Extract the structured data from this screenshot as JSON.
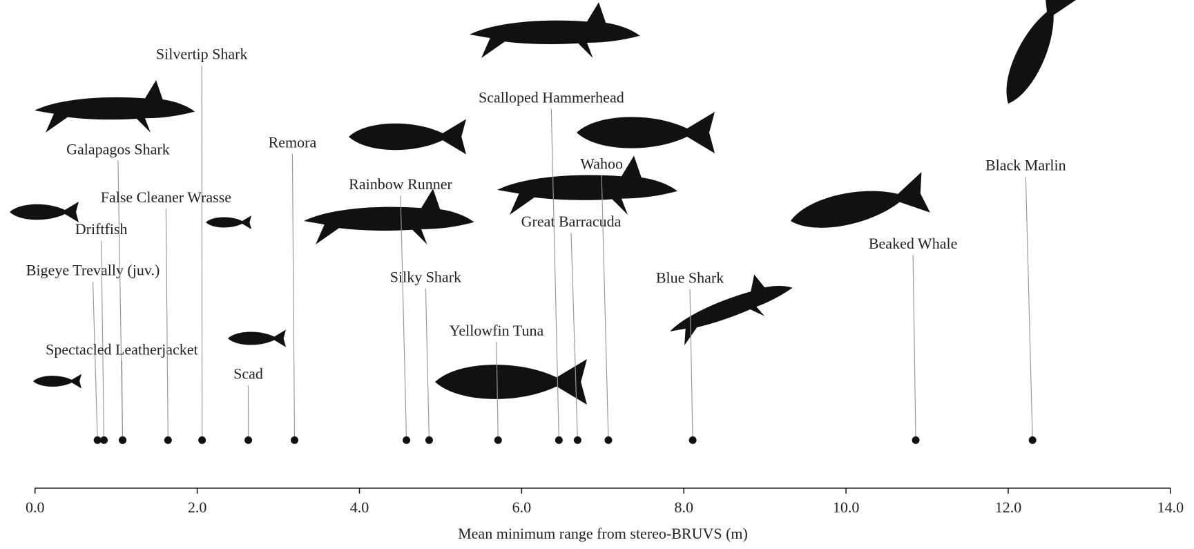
{
  "chart_data": {
    "type": "dot-strip",
    "x_label": "Mean minimum  range  from  stereo-BRUVS  (m)",
    "xlim": [
      0,
      14
    ],
    "xticks": [
      {
        "value": 0,
        "label": "0.0"
      },
      {
        "value": 2,
        "label": "2.0"
      },
      {
        "value": 4,
        "label": "4.0"
      },
      {
        "value": 6,
        "label": "6.0"
      },
      {
        "value": 8,
        "label": "8.0"
      },
      {
        "value": 10,
        "label": "10.0"
      },
      {
        "value": 12,
        "label": "12.0"
      },
      {
        "value": 14,
        "label": "14.0"
      }
    ],
    "color": "#111111",
    "labels": [
      "Bigeye  Trevally  (juv.)",
      "Driftfish",
      "Galapagos  Shark",
      "Spectacled  Leatherjacket",
      "False  Cleaner  Wrasse",
      "Silvertip  Shark",
      "Scad",
      "Remora",
      "Rainbow  Runner",
      "Silky  Shark",
      "Yellowfin  Tuna",
      "Scalloped  Hammerhead",
      "Great  Barracuda",
      "Wahoo",
      "Blue  Shark",
      "Beaked Whale",
      "Black Marlin"
    ],
    "x": [
      0.77,
      0.85,
      1.08,
      1.08,
      1.64,
      2.06,
      2.63,
      3.2,
      4.58,
      4.86,
      5.71,
      6.46,
      6.69,
      7.07,
      8.11,
      10.86,
      12.3
    ]
  }
}
